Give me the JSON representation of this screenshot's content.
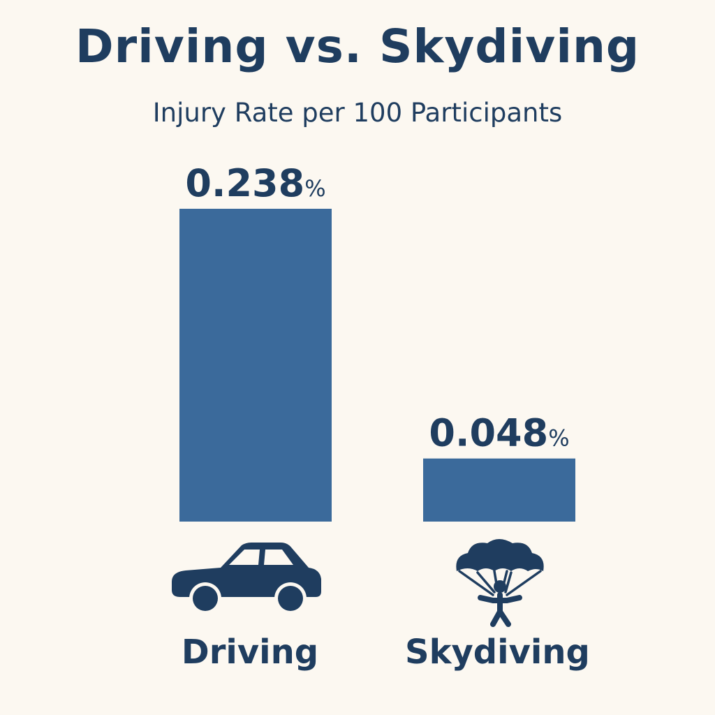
{
  "colors": {
    "background": "#fcf8f1",
    "bar": "#3b6a9b",
    "text": "#1f3d5f"
  },
  "chart_data": {
    "type": "bar",
    "title": "Driving vs. Skydiving",
    "subtitle": "Injury Rate per 100 Participants",
    "categories": [
      "Driving",
      "Skydiving"
    ],
    "values": [
      0.238,
      0.048
    ],
    "value_labels": [
      "0.238",
      "0.048"
    ],
    "value_unit": "%",
    "category_icons": [
      "car-icon",
      "parachute-icon"
    ],
    "ylim": [
      0,
      0.238
    ],
    "grid": false,
    "legend": "none"
  }
}
